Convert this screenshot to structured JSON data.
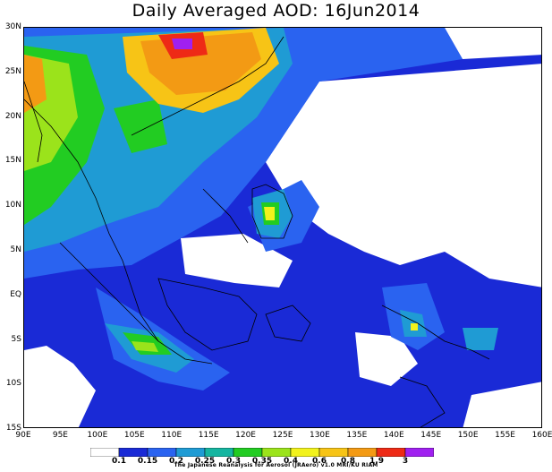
{
  "title": "Daily Averaged AOD: 16Jun2014",
  "axes": {
    "lat_labels": [
      "30N",
      "25N",
      "20N",
      "15N",
      "10N",
      "5N",
      "EQ",
      "5S",
      "10S",
      "15S"
    ],
    "lon_labels": [
      "90E",
      "95E",
      "100E",
      "105E",
      "110E",
      "115E",
      "120E",
      "125E",
      "130E",
      "135E",
      "140E",
      "145E",
      "150E",
      "155E",
      "160E"
    ]
  },
  "colorbar": {
    "ticks": [
      "0.1",
      "0.15",
      "0.2",
      "0.25",
      "0.3",
      "0.35",
      "0.4",
      "0.6",
      "0.8",
      "1.9",
      "3"
    ],
    "colors": [
      "#ffffff",
      "#1a2ad6",
      "#2a63f0",
      "#1f9bd4",
      "#16b5a0",
      "#22cc22",
      "#9be31b",
      "#f2f21c",
      "#f7c416",
      "#f39a14",
      "#ee2a16",
      "#a020f0"
    ]
  },
  "credit": "The Japanese Reanalysis for Aerosol (JRAero) v1.0 MRI/KU RIAM"
}
